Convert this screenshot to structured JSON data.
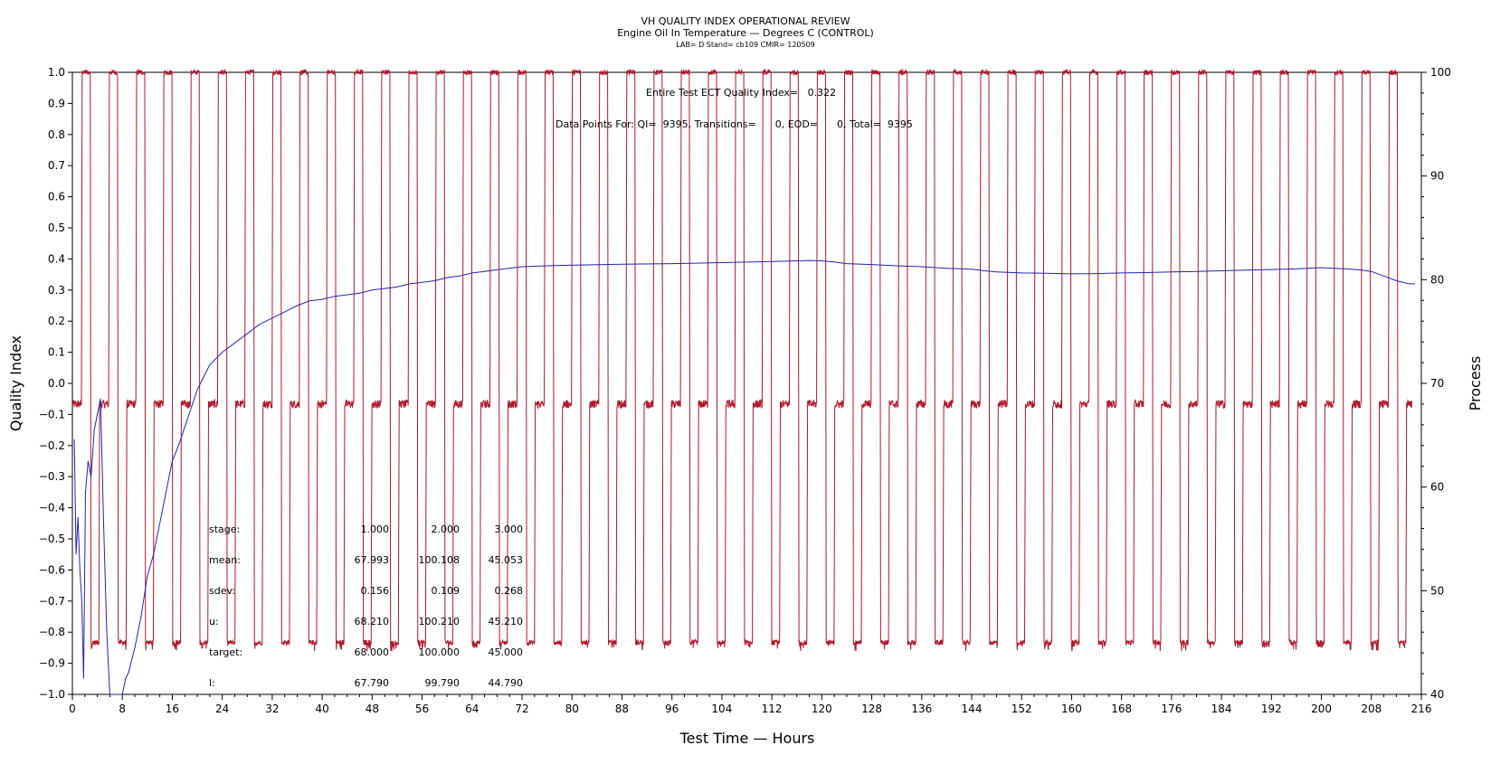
{
  "chart_data": {
    "type": "line",
    "title": "VH QUALITY INDEX OPERATIONAL REVIEW",
    "subtitle": "Engine Oil In Temperature — Degrees C (CONTROL)",
    "subtitle2": "LAB= D Stand= cb109 CMIR= 120509",
    "xlabel": "Test Time — Hours",
    "ylabel_left": "Quality Index",
    "ylabel_right": "Process",
    "xlim": [
      0,
      216
    ],
    "x_ticks": [
      "0",
      "8",
      "16",
      "24",
      "32",
      "40",
      "48",
      "56",
      "64",
      "72",
      "80",
      "88",
      "96",
      "104",
      "112",
      "120",
      "128",
      "136",
      "144",
      "152",
      "160",
      "168",
      "176",
      "184",
      "192",
      "200",
      "208",
      "216"
    ],
    "ylim_left": [
      -1.0,
      1.0
    ],
    "y_left_ticks": [
      "1.0",
      "0.9",
      "0.8",
      "0.7",
      "0.6",
      "0.5",
      "0.4",
      "0.3",
      "0.2",
      "0.1",
      "0.0",
      "−0.1",
      "−0.2",
      "−0.3",
      "−0.4",
      "−0.5",
      "−0.6",
      "−0.7",
      "−0.8",
      "−0.9",
      "−1.0"
    ],
    "ylim_right": [
      40,
      100
    ],
    "y_right_ticks": [
      "100",
      "90",
      "80",
      "70",
      "60",
      "50",
      "40"
    ],
    "grid": false,
    "colors": {
      "process": "#b0182b",
      "quality_index": "#2424b8",
      "axis": "#000000"
    },
    "annotations": {
      "quality_index_text": "Entire Test ECT Quality Index=   0.322",
      "data_points_text": "Data Points For: QI=  9395, Transitions=      0, EOD=      0, Total=  9395"
    },
    "stats_table": {
      "rows": [
        {
          "label": "stage:",
          "values": [
            "1.000",
            "2.000",
            "3.000"
          ]
        },
        {
          "label": "mean:",
          "values": [
            "67.993",
            "100.108",
            "45.053"
          ]
        },
        {
          "label": "sdev:",
          "values": [
            "0.156",
            "0.109",
            "0.268"
          ]
        },
        {
          "label": "u:",
          "values": [
            "68.210",
            "100.210",
            "45.210"
          ]
        },
        {
          "label": "target:",
          "values": [
            "68.000",
            "100.000",
            "45.000"
          ]
        },
        {
          "label": "l:",
          "values": [
            "67.790",
            "99.790",
            "44.790"
          ]
        }
      ]
    },
    "series": [
      {
        "axis": "right",
        "stage_levels": [
          68,
          100,
          45
        ],
        "cycle_hours": 4,
        "stage_durations_hours": [
          1.45,
          1.3,
          1.25
        ],
        "x_start": 0,
        "x_end": 214.5
      },
      {
        "axis": "left",
        "x": [
          0.3,
          0.6,
          0.9,
          1.2,
          1.5,
          1.8,
          2.1,
          2.5,
          3.0,
          3.5,
          4.0,
          4.5,
          5.0,
          5.5,
          6.0,
          7.0,
          8.0,
          8.5,
          9.0,
          10,
          11,
          12,
          13,
          14,
          15,
          16,
          17,
          18,
          19,
          20,
          21,
          22,
          24,
          26,
          28,
          30,
          32,
          34,
          36,
          38,
          40,
          42,
          44,
          46,
          48,
          50,
          52,
          54,
          56,
          58,
          60,
          62,
          64,
          66,
          68,
          72,
          76,
          80,
          88,
          96,
          104,
          112,
          118,
          120,
          122,
          124,
          128,
          132,
          136,
          140,
          144,
          146,
          148,
          152,
          156,
          160,
          164,
          168,
          172,
          176,
          180,
          184,
          188,
          192,
          196,
          200,
          202,
          204,
          206,
          208,
          210,
          212,
          214,
          215
        ],
        "y": [
          -0.18,
          -0.55,
          -0.43,
          -0.6,
          -0.7,
          -0.95,
          -0.35,
          -0.25,
          -0.3,
          -0.15,
          -0.1,
          -0.05,
          -0.45,
          -0.8,
          -1.0,
          -1.0,
          -1.0,
          -0.95,
          -0.93,
          -0.85,
          -0.75,
          -0.62,
          -0.55,
          -0.45,
          -0.35,
          -0.25,
          -0.2,
          -0.14,
          -0.08,
          -0.02,
          0.02,
          0.06,
          0.1,
          0.13,
          0.16,
          0.19,
          0.21,
          0.23,
          0.25,
          0.265,
          0.27,
          0.28,
          0.285,
          0.29,
          0.3,
          0.305,
          0.31,
          0.32,
          0.325,
          0.33,
          0.34,
          0.345,
          0.355,
          0.36,
          0.365,
          0.375,
          0.378,
          0.38,
          0.383,
          0.385,
          0.388,
          0.392,
          0.395,
          0.394,
          0.39,
          0.385,
          0.382,
          0.378,
          0.375,
          0.37,
          0.367,
          0.362,
          0.358,
          0.355,
          0.354,
          0.352,
          0.353,
          0.355,
          0.356,
          0.358,
          0.36,
          0.362,
          0.364,
          0.366,
          0.368,
          0.372,
          0.37,
          0.368,
          0.365,
          0.36,
          0.345,
          0.33,
          0.32,
          0.32
        ]
      }
    ]
  }
}
